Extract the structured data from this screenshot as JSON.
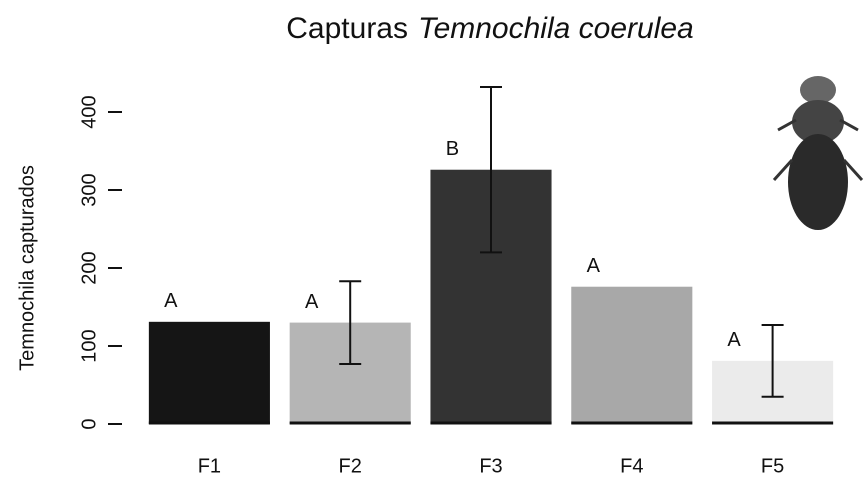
{
  "chart_data": {
    "type": "bar",
    "title": [
      "Capturas",
      "Temnochila coerulea"
    ],
    "y_label": "Temnochila capturados",
    "categories": [
      "F1",
      "F2",
      "F3",
      "F4",
      "F5"
    ],
    "values": [
      131,
      130,
      326,
      176,
      81
    ],
    "errors": [
      null,
      53,
      106,
      null,
      46
    ],
    "annotations": [
      "A",
      "A",
      "B",
      "A",
      "A"
    ],
    "colors": [
      "#151515",
      "#b5b5b5",
      "#333333",
      "#a8a8a8",
      "#ebebeb"
    ],
    "ylim": [
      0,
      470
    ],
    "yticks": [
      0,
      100,
      200,
      300,
      400
    ]
  }
}
